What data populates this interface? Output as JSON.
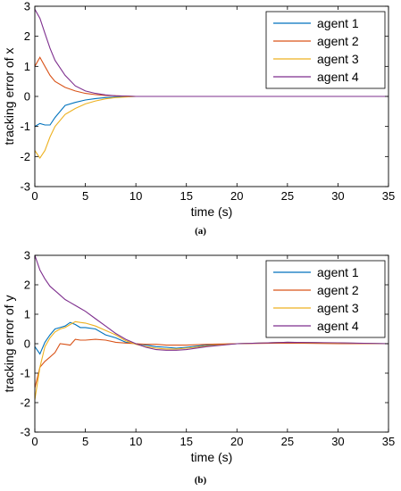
{
  "chart_data": [
    {
      "type": "line",
      "panel_label": "(a)",
      "xlabel": "time (s)",
      "ylabel": "tracking error of x",
      "xlim": [
        0,
        35
      ],
      "ylim": [
        -3,
        3
      ],
      "xticks": [
        0,
        5,
        10,
        15,
        20,
        25,
        30,
        35
      ],
      "yticks": [
        -3,
        -2,
        -1,
        0,
        1,
        2,
        3
      ],
      "legend_position": "top-right",
      "grid": false,
      "series": [
        {
          "name": "agent 1",
          "color": "#0072BD",
          "x": [
            0,
            0.5,
            1,
            1.5,
            2,
            3,
            4,
            5,
            6,
            7,
            8,
            10,
            12,
            15,
            20,
            25,
            30,
            35
          ],
          "y": [
            -1.0,
            -0.9,
            -0.95,
            -0.95,
            -0.7,
            -0.3,
            -0.2,
            -0.12,
            -0.07,
            -0.04,
            -0.02,
            0,
            0,
            0,
            0,
            0,
            0,
            0
          ]
        },
        {
          "name": "agent 2",
          "color": "#D95319",
          "x": [
            0,
            0.5,
            1,
            1.5,
            2,
            3,
            4,
            5,
            6,
            7,
            8,
            10,
            12,
            15,
            20,
            25,
            30,
            35
          ],
          "y": [
            1.0,
            1.3,
            1.0,
            0.7,
            0.5,
            0.3,
            0.18,
            0.1,
            0.06,
            0.03,
            0.02,
            0,
            0,
            0,
            0,
            0,
            0,
            0
          ]
        },
        {
          "name": "agent 3",
          "color": "#EDB120",
          "x": [
            0,
            0.5,
            1,
            1.5,
            2,
            3,
            4,
            5,
            6,
            7,
            8,
            10,
            12,
            15,
            20,
            25,
            30,
            35
          ],
          "y": [
            -1.8,
            -2.05,
            -1.8,
            -1.35,
            -1.0,
            -0.6,
            -0.4,
            -0.25,
            -0.15,
            -0.08,
            -0.04,
            0,
            0,
            0,
            0,
            0,
            0,
            0
          ]
        },
        {
          "name": "agent 4",
          "color": "#7E2F8E",
          "x": [
            0,
            0.5,
            1,
            1.5,
            2,
            3,
            4,
            5,
            6,
            7,
            8,
            10,
            12,
            15,
            20,
            25,
            30,
            35
          ],
          "y": [
            2.9,
            2.6,
            2.1,
            1.6,
            1.2,
            0.7,
            0.35,
            0.18,
            0.1,
            0.05,
            0.02,
            0,
            0,
            0,
            0,
            0,
            0,
            0
          ]
        }
      ]
    },
    {
      "type": "line",
      "panel_label": "(b)",
      "xlabel": "time (s)",
      "ylabel": "tracking error of y",
      "xlim": [
        0,
        35
      ],
      "ylim": [
        -3,
        3
      ],
      "xticks": [
        0,
        5,
        10,
        15,
        20,
        25,
        30,
        35
      ],
      "yticks": [
        -3,
        -2,
        -1,
        0,
        1,
        2,
        3
      ],
      "legend_position": "top-right",
      "grid": false,
      "series": [
        {
          "name": "agent 1",
          "color": "#0072BD",
          "x": [
            0,
            0.5,
            1,
            1.5,
            2,
            2.5,
            3,
            3.5,
            4,
            4.5,
            5,
            6,
            7,
            8,
            9,
            10,
            11,
            12,
            13,
            14,
            15,
            17,
            20,
            25,
            30,
            35
          ],
          "y": [
            -0.1,
            -0.35,
            0.05,
            0.3,
            0.5,
            0.55,
            0.6,
            0.72,
            0.65,
            0.55,
            0.55,
            0.5,
            0.3,
            0.2,
            0.05,
            0,
            -0.05,
            -0.1,
            -0.12,
            -0.15,
            -0.12,
            -0.05,
            0,
            0.05,
            0.02,
            0
          ]
        },
        {
          "name": "agent 2",
          "color": "#D95319",
          "x": [
            0,
            0.5,
            1,
            1.5,
            2,
            2.5,
            3,
            3.5,
            4,
            4.5,
            5,
            6,
            7,
            8,
            9,
            10,
            11,
            12,
            13,
            14,
            15,
            17,
            20,
            25,
            30,
            35
          ],
          "y": [
            -1.5,
            -0.8,
            -0.6,
            -0.45,
            -0.3,
            0,
            -0.02,
            -0.05,
            0.15,
            0.12,
            0.12,
            0.15,
            0.12,
            0.05,
            0.02,
            0,
            -0.02,
            -0.02,
            -0.05,
            -0.05,
            -0.05,
            -0.02,
            0,
            0.02,
            0,
            0
          ]
        },
        {
          "name": "agent 3",
          "color": "#EDB120",
          "x": [
            0,
            0.5,
            1,
            1.5,
            2,
            2.5,
            3,
            3.5,
            4,
            4.5,
            5,
            6,
            7,
            8,
            9,
            10,
            11,
            12,
            13,
            14,
            15,
            17,
            20,
            25,
            30,
            35
          ],
          "y": [
            -1.9,
            -0.8,
            -0.1,
            0.2,
            0.4,
            0.5,
            0.55,
            0.65,
            0.75,
            0.72,
            0.7,
            0.6,
            0.45,
            0.3,
            0.1,
            -0.02,
            -0.1,
            -0.15,
            -0.18,
            -0.18,
            -0.15,
            -0.08,
            0,
            0.05,
            0.02,
            0
          ]
        },
        {
          "name": "agent 4",
          "color": "#7E2F8E",
          "x": [
            0,
            0.5,
            1,
            1.5,
            2,
            2.5,
            3,
            3.5,
            4,
            4.5,
            5,
            6,
            7,
            8,
            9,
            10,
            11,
            12,
            13,
            14,
            15,
            17,
            20,
            25,
            30,
            35
          ],
          "y": [
            3.0,
            2.5,
            2.2,
            1.95,
            1.8,
            1.65,
            1.5,
            1.4,
            1.3,
            1.2,
            1.1,
            0.85,
            0.6,
            0.35,
            0.15,
            0,
            -0.12,
            -0.2,
            -0.22,
            -0.22,
            -0.2,
            -0.1,
            0,
            0.05,
            0.03,
            0
          ]
        }
      ]
    }
  ]
}
